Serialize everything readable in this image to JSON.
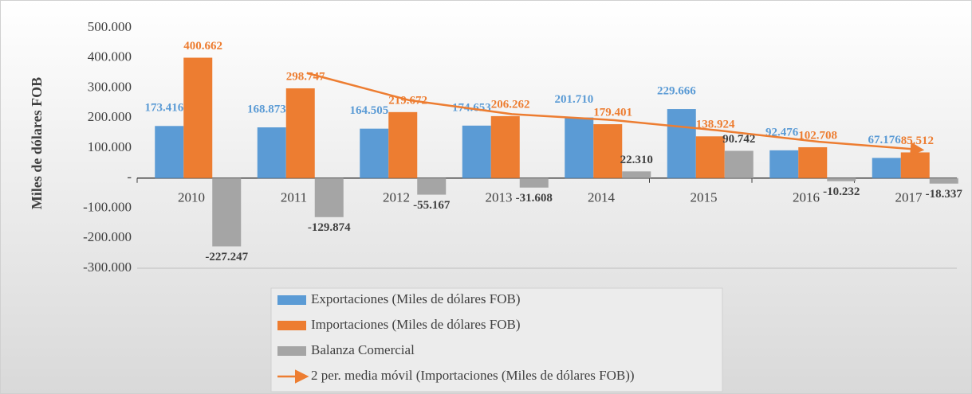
{
  "chart_data": {
    "type": "bar",
    "y_label": "Miles de dólares FOB",
    "categories": [
      "2010",
      "2011",
      "2012",
      "2013",
      "2014",
      "2015",
      "2016",
      "2017"
    ],
    "series": [
      {
        "name": "Exportaciones (Miles de dólares FOB)",
        "color": "#5b9bd5",
        "label_color": "#5b9bd5",
        "values": [
          173416,
          168873,
          164505,
          174653,
          201710,
          229666,
          92476,
          67176
        ],
        "value_labels": [
          "173.416",
          "168.873",
          "164.505",
          "174.653",
          "201.710",
          "229.666",
          "92.476",
          "67.176"
        ]
      },
      {
        "name": "Importaciones (Miles de dólares FOB)",
        "color": "#ed7d31",
        "label_color": "#ed7d31",
        "values": [
          400662,
          298747,
          219672,
          206262,
          179401,
          138924,
          102708,
          85512
        ],
        "value_labels": [
          "400.662",
          "298.747",
          "219.672",
          "206.262",
          "179.401",
          "138.924",
          "102.708",
          "85.512"
        ]
      },
      {
        "name": "Balanza Comercial",
        "color": "#a5a5a5",
        "label_color": "#404040",
        "values": [
          -227247,
          -129874,
          -55167,
          -31608,
          22310,
          90742,
          -10232,
          -18337
        ],
        "value_labels": [
          "-227.247",
          "-129.874",
          "-55.167",
          "-31.608",
          "22.310",
          "90.742",
          "-10.232",
          "-18.337"
        ]
      },
      {
        "name": "2 per. media móvil (Importaciones (Miles de dólares FOB))",
        "color": "#ed7d31",
        "type": "line",
        "values": [
          null,
          349704.5,
          259209.5,
          212967,
          192831.5,
          159162.5,
          120816,
          94110
        ]
      }
    ],
    "ylim": [
      -300000,
      500000
    ],
    "yticks": [
      {
        "value": -300000,
        "label": "-300.000"
      },
      {
        "value": -200000,
        "label": "-200.000"
      },
      {
        "value": -100000,
        "label": "-100.000"
      },
      {
        "value": 0,
        "label": "-"
      },
      {
        "value": 100000,
        "label": "100.000"
      },
      {
        "value": 200000,
        "label": "200.000"
      },
      {
        "value": 300000,
        "label": "300.000"
      },
      {
        "value": 400000,
        "label": "400.000"
      },
      {
        "value": 500000,
        "label": "500.000"
      }
    ],
    "grid": false
  }
}
